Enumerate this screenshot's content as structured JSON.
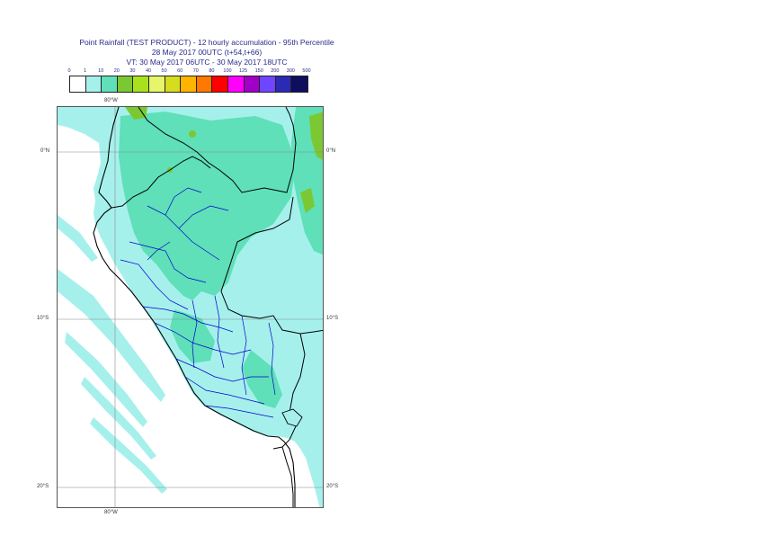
{
  "title": {
    "line1": "Point Rainfall (TEST PRODUCT) - 12 hourly accumulation - 95th Percentile",
    "line2": "28 May 2017 00UTC (t+54,t+66)",
    "line3": "VT: 30 May 2017 06UTC - 30 May 2017 18UTC"
  },
  "legend": {
    "ticks": [
      "0",
      "1",
      "10",
      "20",
      "30",
      "40",
      "50",
      "60",
      "70",
      "80",
      "100",
      "125",
      "150",
      "200",
      "300",
      "500"
    ],
    "colors": [
      "#ffffff",
      "#a6f0ec",
      "#5fe0b8",
      "#7bc832",
      "#a8e21e",
      "#e6f56a",
      "#d6dc1e",
      "#ffb400",
      "#ff7800",
      "#ff0000",
      "#ff00ff",
      "#a000c8",
      "#6e46ff",
      "#2a2ab4",
      "#0e0e5e"
    ]
  },
  "axes": {
    "lon_top": "80°W",
    "lon_bottom": "80°W",
    "lat_labels": [
      {
        "text": "0°N",
        "lat": 0
      },
      {
        "text": "10°S",
        "lat": -10
      },
      {
        "text": "20°S",
        "lat": -20
      }
    ]
  },
  "map": {
    "lon_range": [
      -83.5,
      -67.5
    ],
    "lat_range": [
      2.7,
      -21.3
    ],
    "gridline_lons": [
      -80
    ],
    "gridline_lats": [
      0,
      -10,
      -20
    ],
    "colors": {
      "light": "#a6f0ec",
      "medium": "#5fe0b8",
      "green": "#7bc832",
      "border_country": "#000000",
      "border_region": "#0000cc",
      "grid": "#888888"
    }
  }
}
